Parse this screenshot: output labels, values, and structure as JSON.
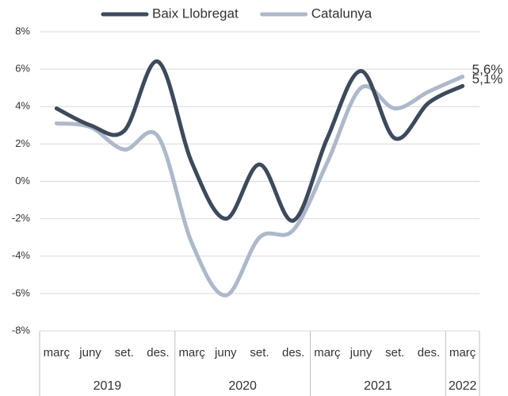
{
  "chart_data": {
    "type": "line",
    "categories": [
      "març",
      "juny",
      "set.",
      "des.",
      "març",
      "juny",
      "set.",
      "des.",
      "març",
      "juny",
      "set.",
      "des.",
      "març"
    ],
    "years": [
      "2019",
      "2019",
      "2019",
      "2019",
      "2020",
      "2020",
      "2020",
      "2020",
      "2021",
      "2021",
      "2021",
      "2021",
      "2022"
    ],
    "series": [
      {
        "name": "Baix Llobregat",
        "color": "#3d4a5c",
        "values": [
          3.9,
          3.0,
          2.7,
          6.4,
          1.0,
          -2.0,
          0.9,
          -2.1,
          2.3,
          5.9,
          2.3,
          4.2,
          5.1
        ],
        "value_labels": [
          null,
          null,
          null,
          null,
          null,
          null,
          null,
          null,
          null,
          null,
          null,
          null,
          "5,1%"
        ]
      },
      {
        "name": "Catalunya",
        "color": "#adb9ca",
        "values": [
          3.1,
          2.9,
          1.7,
          2.4,
          -3.3,
          -6.1,
          -3.0,
          -2.6,
          1.0,
          5.0,
          3.9,
          4.8,
          5.6
        ],
        "value_labels": [
          null,
          null,
          null,
          null,
          null,
          null,
          null,
          null,
          null,
          null,
          null,
          null,
          "5,6%"
        ]
      }
    ],
    "ylim": [
      -8,
      8
    ],
    "yticks": [
      {
        "value": -8,
        "label": "-8%"
      },
      {
        "value": -6,
        "label": "-6%"
      },
      {
        "value": -4,
        "label": "-4%"
      },
      {
        "value": -2,
        "label": "-2%"
      },
      {
        "value": 0,
        "label": "0%"
      },
      {
        "value": 2,
        "label": "2%"
      },
      {
        "value": 4,
        "label": "4%"
      },
      {
        "value": 6,
        "label": "6%"
      },
      {
        "value": 8,
        "label": "8%"
      }
    ],
    "grid": true,
    "legend": "top"
  }
}
